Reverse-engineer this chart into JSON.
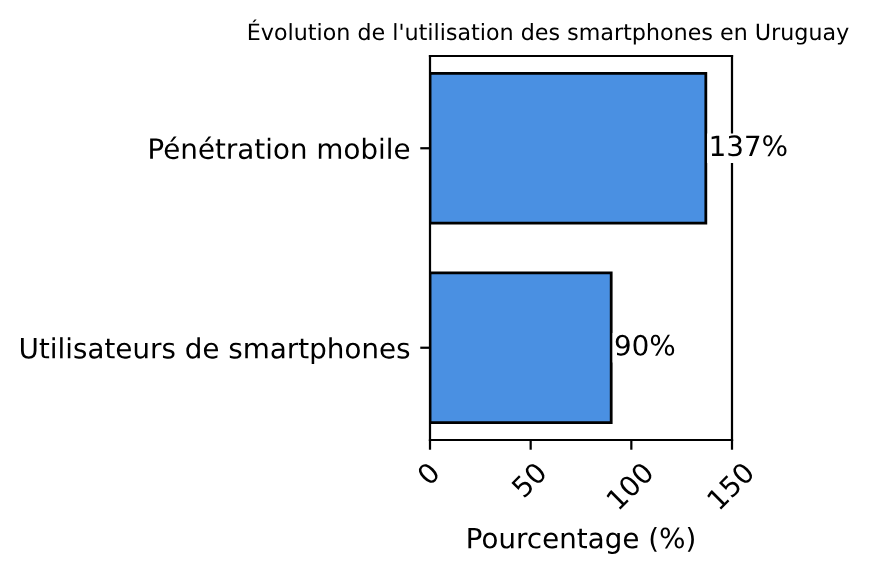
{
  "chart_data": {
    "type": "bar",
    "orientation": "horizontal",
    "title": "Évolution de l'utilisation des smartphones en Uruguay",
    "xlabel": "Pourcentage (%)",
    "categories": [
      "Pénétration mobile",
      "Utilisateurs de smartphones"
    ],
    "values": [
      137,
      90
    ],
    "value_labels": [
      "137%",
      "90%"
    ],
    "color": "#4a90e2",
    "xlim": [
      0,
      150
    ],
    "xticks": [
      0,
      50,
      100,
      150
    ],
    "grid": false
  }
}
